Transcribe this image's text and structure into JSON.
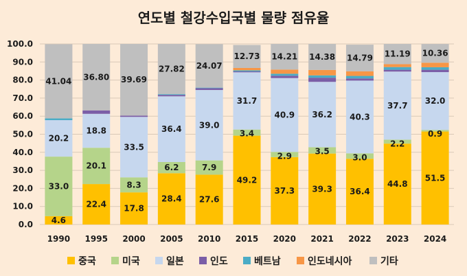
{
  "chart_data": {
    "type": "bar",
    "stacked": true,
    "title": "연도별 철강수입국별 물량 점유율",
    "categories": [
      "1990",
      "1995",
      "2000",
      "2005",
      "2010",
      "2015",
      "2020",
      "2021",
      "2022",
      "2023",
      "2024"
    ],
    "ylim": [
      0,
      100
    ],
    "yticks": [
      "0.0",
      "10.0",
      "20.0",
      "30.0",
      "40.0",
      "50.0",
      "60.0",
      "70.0",
      "80.0",
      "90.0",
      "100.0"
    ],
    "legend_position": "bottom",
    "series": [
      {
        "name": "중국",
        "color": "#ffc000",
        "values": [
          4.6,
          22.4,
          17.8,
          28.4,
          27.6,
          49.2,
          37.3,
          39.3,
          36.4,
          44.8,
          51.5
        ],
        "labels": [
          "4.6",
          "22.4",
          "17.8",
          "28.4",
          "27.6",
          "49.2",
          "37.3",
          "39.3",
          "36.4",
          "44.8",
          "51.5"
        ]
      },
      {
        "name": "미국",
        "color": "#b5d48a",
        "values": [
          33.0,
          20.1,
          8.3,
          6.2,
          7.9,
          3.4,
          2.9,
          3.5,
          3.0,
          2.2,
          0.9
        ],
        "labels": [
          "33.0",
          "20.1",
          "8.3",
          "6.2",
          "7.9",
          "3.4",
          "2.9",
          "3.5",
          "3.0",
          "2.2",
          "0.9"
        ]
      },
      {
        "name": "일본",
        "color": "#c6d7ee",
        "values": [
          20.2,
          18.8,
          33.5,
          36.4,
          39.0,
          31.7,
          40.9,
          36.2,
          40.3,
          37.7,
          32.0
        ],
        "labels": [
          "20.2",
          "18.8",
          "33.5",
          "36.4",
          "39.0",
          "31.7",
          "40.9",
          "36.2",
          "40.3",
          "37.7",
          "32.0"
        ]
      },
      {
        "name": "인도",
        "color": "#7b5ea7",
        "values": [
          0.0,
          1.9,
          0.7,
          0.8,
          1.0,
          0.5,
          1.3,
          2.3,
          1.2,
          1.0,
          1.3
        ],
        "labels": []
      },
      {
        "name": "베트남",
        "color": "#4bacc6",
        "values": [
          1.0,
          0.0,
          0.0,
          0.4,
          0.3,
          0.6,
          1.1,
          1.3,
          1.4,
          1.5,
          1.4
        ],
        "labels": []
      },
      {
        "name": "인도네시아",
        "color": "#f79646",
        "values": [
          0.0,
          0.0,
          0.0,
          0.0,
          0.0,
          1.3,
          2.3,
          3.0,
          2.5,
          1.6,
          2.5
        ],
        "labels": []
      },
      {
        "name": "기타",
        "color": "#bfbfbf",
        "values": [
          41.04,
          36.8,
          39.69,
          27.82,
          24.07,
          12.73,
          14.21,
          14.38,
          14.79,
          11.19,
          10.36
        ],
        "labels": [
          "41.04",
          "36.80",
          "39.69",
          "27.82",
          "24.07",
          "12.73",
          "14.21",
          "14.38",
          "14.79",
          "11.19",
          "10.36"
        ]
      }
    ]
  }
}
